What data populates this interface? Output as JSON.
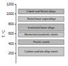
{
  "chart_data": {
    "type": "range",
    "ylabel": "T, °C",
    "ylim": [
      0,
      1200
    ],
    "yticks": [
      200,
      400,
      600,
      800,
      1000,
      1200
    ],
    "tick_labels": "y",
    "bands": [
      {
        "label": "Cobalt and Nickel alloys",
        "low": 1000,
        "high": 1100,
        "color": "#b8b8b8"
      },
      {
        "label": "Nickel base superalloys",
        "low": 850,
        "high": 950,
        "color": "#c8c8c8"
      },
      {
        "label": "Iron/nickel base alloys",
        "low": 650,
        "high": 800,
        "color": "#b8b8b8"
      },
      {
        "label": "Martensitic/austenitic steels",
        "low": 530,
        "high": 630,
        "color": "#c8c8c8"
      },
      {
        "label": "Ferritic steels",
        "low": 380,
        "high": 480,
        "color": "#b8b8b8"
      },
      {
        "label": "Carbon and low alloy steels",
        "low": 150,
        "high": 330,
        "color": "#c8c8c8"
      }
    ]
  }
}
